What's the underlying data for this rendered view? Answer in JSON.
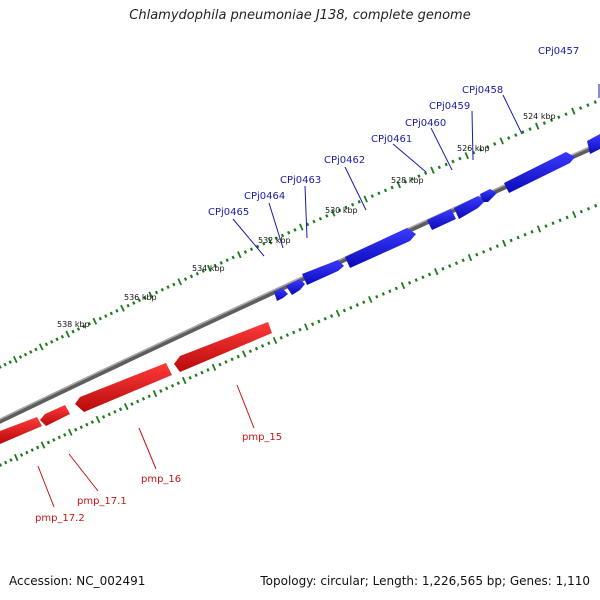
{
  "title": "Chlamydophila pneumoniae J138, complete genome",
  "footer": {
    "accession": "Accession: NC_002491",
    "summary": "Topology: circular; Length: 1,226,565 bp; Genes: 1,110"
  },
  "colors": {
    "forward_gene": "#1f1fe0",
    "reverse_gene": "#e01818",
    "forward_label": "#1a1aa8",
    "reverse_label": "#c41414",
    "backbone": "#7a7a7a",
    "ticks": "#1d7a1d",
    "background": "#ffffff"
  },
  "kbp_labels": [
    "524 kbp",
    "526 kbp",
    "528 kbp",
    "530 kbp",
    "532 kbp",
    "534 kbp",
    "536 kbp",
    "538 kbp"
  ],
  "forward_genes": [
    {
      "name": "CPj0457"
    },
    {
      "name": "CPj0458"
    },
    {
      "name": "CPj0459"
    },
    {
      "name": "CPj0460"
    },
    {
      "name": "CPj0461"
    },
    {
      "name": "CPj0462"
    },
    {
      "name": "CPj0463"
    },
    {
      "name": "CPj0464"
    },
    {
      "name": "CPj0465"
    }
  ],
  "reverse_genes": [
    {
      "name": "pmp_15"
    },
    {
      "name": "pmp_16"
    },
    {
      "name": "pmp_17.1"
    },
    {
      "name": "pmp_17.2"
    }
  ]
}
